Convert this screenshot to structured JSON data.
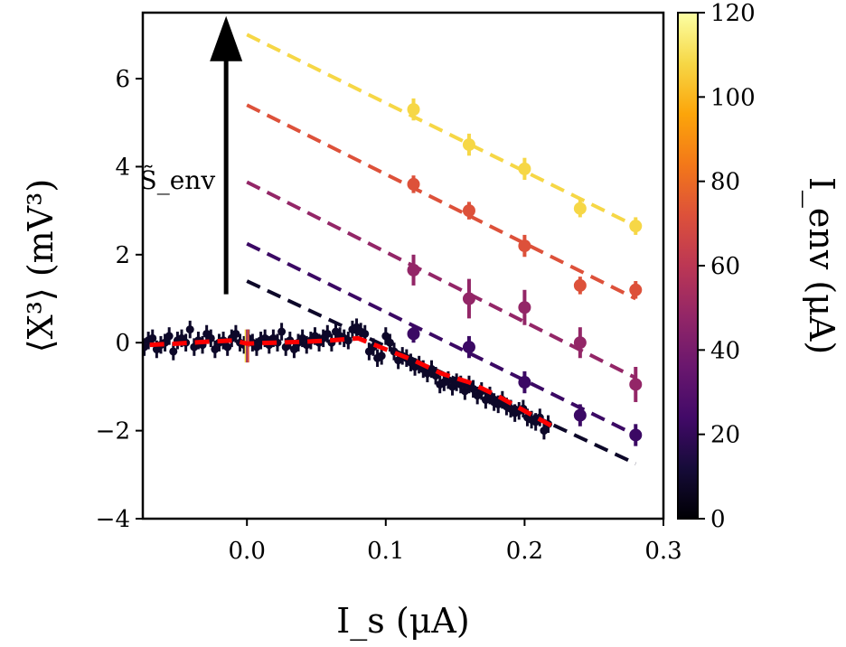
{
  "chart_data": {
    "type": "scatter",
    "title": "",
    "xlabel": "I_s (μA)",
    "ylabel": "⟨X³⟩ (mV³)",
    "xlim": [
      -0.075,
      0.3
    ],
    "ylim": [
      -4,
      7.5
    ],
    "xticks": [
      "0.0",
      "0.1",
      "0.2",
      "0.3"
    ],
    "xtick_values": [
      0.0,
      0.1,
      0.2,
      0.3
    ],
    "yticks": [
      "−4",
      "−2",
      "0",
      "2",
      "4",
      "6"
    ],
    "ytick_values": [
      -4,
      -2,
      0,
      2,
      4,
      6
    ],
    "grid": false,
    "colorbar": {
      "label": "I_env (μA)",
      "range": [
        0,
        120
      ],
      "ticks": [
        "0",
        "20",
        "40",
        "60",
        "80",
        "100",
        "120"
      ],
      "tick_values": [
        0,
        20,
        40,
        60,
        80,
        100,
        120
      ],
      "colormap": "inferno"
    },
    "annotation": {
      "text": "S̃_env",
      "arrow": {
        "x": -0.015,
        "y_from": 1.1,
        "y_to": 7.3
      }
    },
    "fit_lines": [
      {
        "I_env": 0,
        "color": "#0d0829",
        "x": [
          0.0,
          0.28
        ],
        "y": [
          1.4,
          -2.75
        ]
      },
      {
        "I_env": 20,
        "color": "#3b0964",
        "x": [
          0.0,
          0.28
        ],
        "y": [
          2.25,
          -2.1
        ]
      },
      {
        "I_env": 50,
        "color": "#932667",
        "x": [
          0.0,
          0.28
        ],
        "y": [
          3.65,
          -0.8
        ]
      },
      {
        "I_env": 80,
        "color": "#dd513a",
        "x": [
          0.0,
          0.28
        ],
        "y": [
          5.4,
          1.0
        ]
      },
      {
        "I_env": 115,
        "color": "#f6d746",
        "x": [
          0.0,
          0.28
        ],
        "y": [
          7.0,
          2.65
        ]
      }
    ],
    "theory_curve": {
      "color": "#ff0000",
      "x": [
        -0.07,
        -0.05,
        -0.03,
        -0.01,
        0.0,
        0.02,
        0.04,
        0.06,
        0.08,
        0.1,
        0.12,
        0.14,
        0.16,
        0.18,
        0.2,
        0.22
      ],
      "y": [
        -0.05,
        -0.02,
        0.02,
        0.05,
        -0.02,
        0.0,
        0.02,
        0.05,
        0.1,
        -0.15,
        -0.4,
        -0.7,
        -0.9,
        -1.2,
        -1.55,
        -1.9
      ]
    },
    "series": [
      {
        "I_env": 20,
        "color": "#3b0964",
        "x": [
          0.12,
          0.16,
          0.2,
          0.24,
          0.28
        ],
        "y": [
          0.2,
          -0.1,
          -0.9,
          -1.65,
          -2.1
        ],
        "err": [
          0.2,
          0.25,
          0.25,
          0.25,
          0.25
        ]
      },
      {
        "I_env": 50,
        "color": "#932667",
        "x": [
          0.12,
          0.16,
          0.2,
          0.24,
          0.28
        ],
        "y": [
          1.65,
          1.0,
          0.8,
          0.0,
          -0.95
        ],
        "err": [
          0.35,
          0.45,
          0.4,
          0.35,
          0.4
        ]
      },
      {
        "I_env": 80,
        "color": "#dd513a",
        "x": [
          0.12,
          0.16,
          0.2,
          0.24,
          0.28
        ],
        "y": [
          3.6,
          3.0,
          2.2,
          1.3,
          1.2
        ],
        "err": [
          0.2,
          0.2,
          0.25,
          0.2,
          0.2
        ]
      },
      {
        "I_env": 115,
        "color": "#f6d746",
        "x": [
          0.12,
          0.16,
          0.2,
          0.24,
          0.28
        ],
        "y": [
          5.3,
          4.5,
          3.95,
          3.05,
          2.65
        ],
        "err": [
          0.25,
          0.25,
          0.25,
          0.2,
          0.2
        ]
      },
      {
        "I_env": 0,
        "color": "#0d0829",
        "x": [
          -0.074,
          -0.071,
          -0.068,
          -0.065,
          -0.062,
          -0.059,
          -0.056,
          -0.053,
          -0.05,
          -0.047,
          -0.044,
          -0.041,
          -0.038,
          -0.035,
          -0.032,
          -0.029,
          -0.026,
          -0.023,
          -0.02,
          -0.017,
          -0.014,
          -0.011,
          -0.008,
          -0.005,
          -0.002,
          0.001,
          0.004,
          0.007,
          0.01,
          0.013,
          0.016,
          0.019,
          0.022,
          0.025,
          0.028,
          0.031,
          0.034,
          0.037,
          0.04,
          0.043,
          0.046,
          0.049,
          0.052,
          0.055,
          0.058,
          0.061,
          0.064,
          0.067,
          0.07,
          0.073,
          0.076,
          0.079,
          0.082,
          0.085,
          0.088,
          0.091,
          0.094,
          0.097,
          0.1,
          0.103,
          0.106,
          0.109,
          0.112,
          0.115,
          0.118,
          0.121,
          0.124,
          0.127,
          0.13,
          0.133,
          0.136,
          0.139,
          0.142,
          0.145,
          0.148,
          0.151,
          0.154,
          0.157,
          0.16,
          0.163,
          0.166,
          0.169,
          0.172,
          0.175,
          0.178,
          0.181,
          0.184,
          0.187,
          0.19,
          0.193,
          0.196,
          0.199,
          0.202,
          0.205,
          0.208,
          0.211,
          0.214,
          0.217
        ],
        "y": [
          -0.1,
          0.05,
          0.1,
          -0.15,
          -0.05,
          0.0,
          0.15,
          -0.2,
          0.05,
          0.1,
          0.0,
          0.3,
          -0.1,
          0.05,
          -0.05,
          0.2,
          0.1,
          -0.15,
          0.0,
          0.05,
          -0.1,
          0.1,
          0.2,
          0.0,
          -0.05,
          0.1,
          0.0,
          -0.1,
          0.05,
          0.1,
          -0.05,
          0.1,
          0.0,
          0.25,
          -0.1,
          0.05,
          -0.15,
          0.0,
          0.1,
          -0.05,
          0.05,
          0.15,
          0.0,
          0.1,
          0.2,
          0.0,
          0.25,
          0.15,
          0.1,
          0.05,
          0.3,
          0.35,
          0.25,
          0.2,
          -0.2,
          -0.1,
          -0.35,
          -0.3,
          0.15,
          0.0,
          -0.2,
          -0.4,
          -0.3,
          -0.35,
          -0.45,
          -0.55,
          -0.5,
          -0.6,
          -0.7,
          -0.6,
          -0.75,
          -0.95,
          -0.9,
          -0.85,
          -1.0,
          -0.9,
          -0.95,
          -1.1,
          -0.95,
          -1.05,
          -1.2,
          -1.1,
          -1.3,
          -1.2,
          -1.35,
          -1.4,
          -1.3,
          -1.45,
          -1.5,
          -1.6,
          -1.55,
          -1.5,
          -1.7,
          -1.75,
          -1.8,
          -1.7,
          -2.0,
          -1.85
        ],
        "err": 0.2
      }
    ]
  }
}
